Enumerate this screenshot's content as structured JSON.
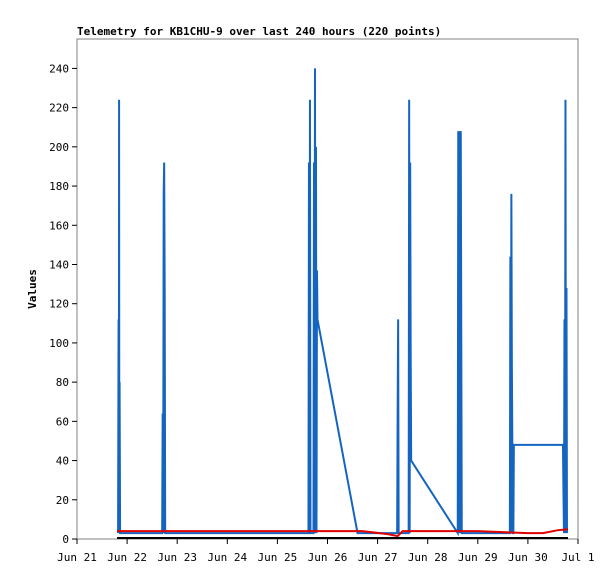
{
  "chart_data": {
    "type": "line",
    "title": "Telemetry for KB1CHU-9 over last 240 hours (220 points)",
    "xlabel": "",
    "ylabel": "Values",
    "x_ticks": [
      "Jun 21",
      "Jun 22",
      "Jun 23",
      "Jun 24",
      "Jun 25",
      "Jun 26",
      "Jun 27",
      "Jun 28",
      "Jun 29",
      "Jun 30",
      "Jul 1"
    ],
    "xlim": [
      "Jun 21",
      "Jul 1"
    ],
    "ylim": [
      0,
      255
    ],
    "y_ticks": [
      0,
      20,
      40,
      60,
      80,
      100,
      120,
      140,
      160,
      180,
      200,
      220,
      240
    ],
    "grid": false,
    "legend": "none",
    "series": [
      {
        "color": "#1565c0",
        "x_days": [
          0.82,
          0.83,
          0.835,
          0.84,
          0.845,
          0.85,
          0.86,
          0.87,
          1.7,
          1.71,
          1.72,
          1.73,
          1.74,
          1.75,
          1.76,
          4.62,
          4.63,
          4.64,
          4.65,
          4.66,
          4.72,
          4.73,
          4.74,
          4.75,
          4.76,
          4.77,
          4.78,
          4.79,
          4.8,
          5.6,
          6.39,
          6.4,
          6.41,
          6.42,
          6.62,
          6.63,
          6.64,
          6.65,
          6.66,
          6.67,
          7.6,
          7.61,
          7.62,
          7.63,
          7.64,
          7.65,
          7.66,
          7.67,
          7.68,
          8.64,
          8.65,
          8.66,
          8.67,
          8.68,
          8.7,
          8.71,
          8.72,
          9.7,
          9.71,
          9.72,
          9.73,
          9.74,
          9.75,
          9.76,
          9.77,
          9.78
        ],
        "values": [
          3,
          112,
          3,
          224,
          3,
          80,
          3,
          3,
          3,
          64,
          3,
          176,
          192,
          128,
          3,
          3,
          192,
          3,
          224,
          3,
          3,
          192,
          3,
          240,
          3,
          200,
          3,
          137,
          112,
          3,
          3,
          64,
          112,
          3,
          3,
          224,
          3,
          192,
          96,
          40,
          3,
          208,
          3,
          208,
          184,
          3,
          208,
          104,
          3,
          3,
          144,
          3,
          176,
          88,
          3,
          3,
          48,
          48,
          24,
          3,
          112,
          3,
          224,
          3,
          128,
          3
        ]
      },
      {
        "color": "#e00000",
        "x_days": [
          0.8,
          1.5,
          2.5,
          3.5,
          4.5,
          5.5,
          5.7,
          6.2,
          6.4,
          6.5,
          7.0,
          7.5,
          8.0,
          8.5,
          9.0,
          9.3,
          9.6,
          9.8
        ],
        "values": [
          4,
          4,
          4,
          4,
          4,
          4,
          4,
          2.5,
          1.5,
          4,
          4,
          4,
          4,
          3.5,
          3,
          3,
          4.5,
          5
        ]
      },
      {
        "color": "#000000",
        "x_days": [
          0.8,
          9.8
        ],
        "values": [
          0.5,
          0.5
        ]
      }
    ]
  }
}
